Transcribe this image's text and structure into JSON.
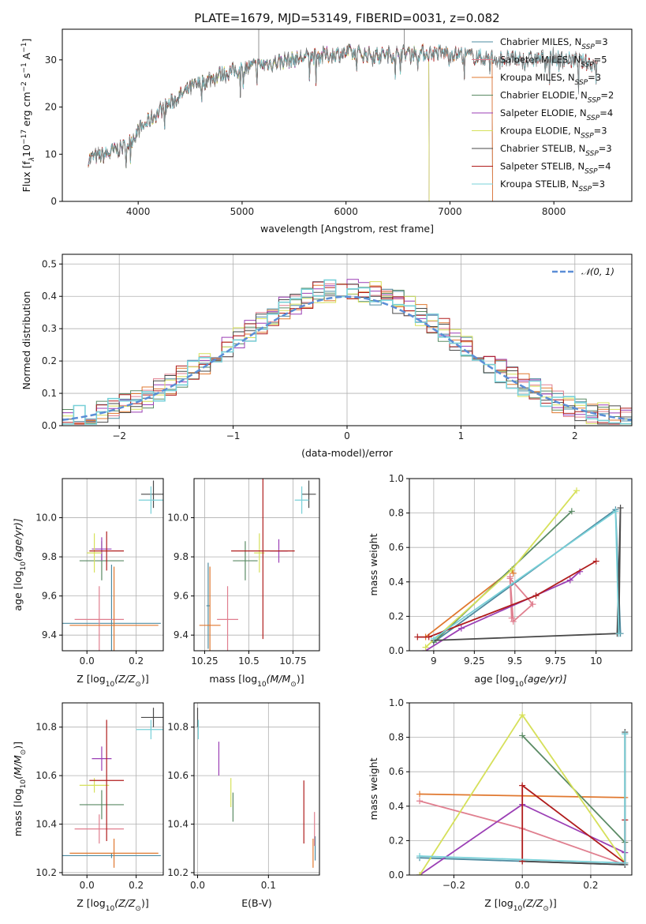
{
  "figure_title": "PLATE=1679, MJD=53149, FIBERID=0031, z=0.082",
  "colors": {
    "Chabrier MILES": "#4e8ba0",
    "Salpeter MILES": "#e07f8f",
    "Kroupa MILES": "#e0782f",
    "Chabrier ELODIE": "#5a8a64",
    "Salpeter ELODIE": "#9b3fb5",
    "Kroupa ELODIE": "#d6e05a",
    "Chabrier STELIB": "#4a4a4a",
    "Salpeter STELIB": "#b01d1d",
    "Kroupa STELIB": "#78d0d8",
    "Gaussian": "#5b8ed6"
  },
  "legend_spectrum": [
    {
      "model": "Chabrier MILES",
      "label_pre": "Chabrier MILES, N",
      "sub": "SSP",
      "label_post": "=3"
    },
    {
      "model": "Salpeter MILES",
      "label_pre": "Salpeter MILES, N",
      "sub": "SSP",
      "label_post": "=5"
    },
    {
      "model": "Kroupa MILES",
      "label_pre": "Kroupa MILES, N",
      "sub": "SSP",
      "label_post": "=3"
    },
    {
      "model": "Chabrier ELODIE",
      "label_pre": "Chabrier ELODIE, N",
      "sub": "SSP",
      "label_post": "=2"
    },
    {
      "model": "Salpeter ELODIE",
      "label_pre": "Salpeter ELODIE, N",
      "sub": "SSP",
      "label_post": "=4"
    },
    {
      "model": "Kroupa ELODIE",
      "label_pre": "Kroupa ELODIE, N",
      "sub": "SSP",
      "label_post": "=3"
    },
    {
      "model": "Chabrier STELIB",
      "label_pre": "Chabrier STELIB, N",
      "sub": "SSP",
      "label_post": "=3"
    },
    {
      "model": "Salpeter STELIB",
      "label_pre": "Salpeter STELIB, N",
      "sub": "SSP",
      "label_post": "=4"
    },
    {
      "model": "Kroupa STELIB",
      "label_pre": "Kroupa STELIB, N",
      "sub": "SSP",
      "label_post": "=3"
    }
  ],
  "chart_data": [
    {
      "id": "spectrum",
      "type": "line",
      "title": "PLATE=1679, MJD=53149, FIBERID=0031, z=0.082",
      "xlabel": "wavelength [Angstrom, rest frame]",
      "ylabel_pre": "Flux [f",
      "ylabel_sub": "λ",
      "ylabel_mid": "10",
      "ylabel_sup1": "−17",
      "ylabel_post": " erg cm",
      "ylabel_sup2": "−2",
      "ylabel_s": " s",
      "ylabel_sup3": "−1",
      "ylabel_a": " A",
      "ylabel_sup4": "−1",
      "ylabel_end": "]",
      "xlim": [
        3270,
        8750
      ],
      "ylim": [
        0,
        36.5
      ],
      "xticks": [
        4000,
        5000,
        6000,
        7000,
        8000
      ],
      "yticks": [
        0,
        10,
        20,
        30
      ],
      "continuum_x": [
        3520,
        3700,
        3900,
        4000,
        4200,
        4500,
        4800,
        5000,
        5300,
        5600,
        6000,
        6300,
        6600,
        7000,
        7300,
        7700,
        8000,
        8300,
        8420
      ],
      "continuum_y": [
        9,
        10,
        12,
        15,
        19,
        24,
        27,
        28,
        29.5,
        30.5,
        31.5,
        31,
        31.5,
        31.5,
        30.5,
        30,
        30.5,
        29.5,
        29
      ]
    },
    {
      "id": "residuals",
      "type": "histogram",
      "xlabel": "(data-model)/error",
      "ylabel": "Normed distribution",
      "xlim": [
        -2.5,
        2.5
      ],
      "ylim": [
        0,
        0.53
      ],
      "xticks": [
        -2,
        -1,
        0,
        1,
        2
      ],
      "yticks": [
        0.0,
        0.1,
        0.2,
        0.3,
        0.4,
        0.5
      ],
      "legend_label": "𝒩(0, 1)",
      "gaussian": {
        "mu": 0,
        "sigma": 1
      }
    },
    {
      "id": "age_vs_Z",
      "type": "scatter",
      "xlabel_pre": "Z [log",
      "xlabel_sub": "10",
      "xlabel_post": "(Z/Z",
      "xlabel_sub2": "⊙",
      "xlabel_end": ")]",
      "ylabel_pre": "age  [log",
      "ylabel_sub": "10",
      "ylabel_post": "(age/yr)]",
      "xlim": [
        -0.1,
        0.31
      ],
      "ylim": [
        9.32,
        10.2
      ],
      "xticks": [
        0.0,
        0.2
      ],
      "yticks": [
        9.4,
        9.6,
        9.8,
        10.0
      ],
      "points": [
        {
          "model": "Chabrier MILES",
          "x": 0.1,
          "y": 9.46,
          "xerr": 0.2,
          "yerr": 0.3
        },
        {
          "model": "Salpeter MILES",
          "x": 0.05,
          "y": 9.48,
          "xerr": 0.1,
          "yerr": 0.17
        },
        {
          "model": "Kroupa MILES",
          "x": 0.11,
          "y": 9.45,
          "xerr": 0.18,
          "yerr": 0.3
        },
        {
          "model": "Chabrier ELODIE",
          "x": 0.06,
          "y": 9.78,
          "xerr": 0.09,
          "yerr": 0.1
        },
        {
          "model": "Salpeter ELODIE",
          "x": 0.06,
          "y": 9.84,
          "xerr": 0.04,
          "yerr": 0.06
        },
        {
          "model": "Kroupa ELODIE",
          "x": 0.03,
          "y": 9.82,
          "xerr": 0.03,
          "yerr": 0.1
        },
        {
          "model": "Chabrier STELIB",
          "x": 0.27,
          "y": 10.12,
          "xerr": 0.05,
          "yerr": 0.07
        },
        {
          "model": "Salpeter STELIB",
          "x": 0.08,
          "y": 9.83,
          "xerr": 0.07,
          "yerr": 0.1
        },
        {
          "model": "Kroupa STELIB",
          "x": 0.26,
          "y": 10.09,
          "xerr": 0.05,
          "yerr": 0.07
        }
      ]
    },
    {
      "id": "age_vs_mass",
      "type": "scatter",
      "xlabel_pre": "mass [log",
      "xlabel_sub": "10",
      "xlabel_post": "(M/M",
      "xlabel_sub2": "⊙",
      "xlabel_end": ")]",
      "xlim": [
        10.19,
        10.9
      ],
      "ylim": [
        9.32,
        10.2
      ],
      "xticks": [
        10.25,
        10.5,
        10.75
      ],
      "yticks": [
        9.4,
        9.6,
        9.8,
        10.0
      ],
      "points": [
        {
          "model": "Chabrier MILES",
          "x": 10.27,
          "y": 9.55,
          "xerr": 0.01,
          "yerr": 0.22
        },
        {
          "model": "Salpeter MILES",
          "x": 10.38,
          "y": 9.48,
          "xerr": 0.06,
          "yerr": 0.17
        },
        {
          "model": "Kroupa MILES",
          "x": 10.28,
          "y": 9.45,
          "xerr": 0.06,
          "yerr": 0.3
        },
        {
          "model": "Chabrier ELODIE",
          "x": 10.48,
          "y": 9.78,
          "xerr": 0.07,
          "yerr": 0.1
        },
        {
          "model": "Salpeter ELODIE",
          "x": 10.67,
          "y": 9.83,
          "xerr": 0.05,
          "yerr": 0.06
        },
        {
          "model": "Kroupa ELODIE",
          "x": 10.56,
          "y": 9.82,
          "xerr": 0.03,
          "yerr": 0.1
        },
        {
          "model": "Chabrier STELIB",
          "x": 10.84,
          "y": 10.12,
          "xerr": 0.04,
          "yerr": 0.07
        },
        {
          "model": "Salpeter STELIB",
          "x": 10.58,
          "y": 9.83,
          "xerr": 0.18,
          "yerr": 0.45
        },
        {
          "model": "Kroupa STELIB",
          "x": 10.8,
          "y": 10.09,
          "xerr": 0.04,
          "yerr": 0.07
        }
      ]
    },
    {
      "id": "weight_vs_age",
      "type": "line",
      "xlabel_pre": "age  [log",
      "xlabel_sub": "10",
      "xlabel_post": "(age/yr)]",
      "ylabel": "mass weight",
      "xlim": [
        8.85,
        10.22
      ],
      "ylim": [
        0,
        1.0
      ],
      "xticks": [
        9.0,
        9.25,
        9.5,
        9.75,
        10.0
      ],
      "yticks": [
        0.0,
        0.2,
        0.4,
        0.6,
        0.8,
        1.0
      ],
      "series": [
        {
          "model": "Chabrier MILES",
          "x": [
            9.0,
            10.12,
            10.15
          ],
          "y": [
            0.05,
            0.82,
            0.1
          ]
        },
        {
          "model": "Salpeter MILES",
          "x": [
            9.47,
            9.49,
            9.61,
            9.47,
            9.48
          ],
          "y": [
            0.43,
            0.17,
            0.27,
            0.42,
            0.19
          ]
        },
        {
          "model": "Kroupa MILES",
          "x": [
            8.95,
            9.48,
            9.49
          ],
          "y": [
            0.08,
            0.47,
            0.45
          ]
        },
        {
          "model": "Chabrier ELODIE",
          "x": [
            9.0,
            9.85
          ],
          "y": [
            0.05,
            0.81
          ]
        },
        {
          "model": "Salpeter ELODIE",
          "x": [
            8.95,
            9.17,
            9.84,
            9.9
          ],
          "y": [
            0.0,
            0.13,
            0.41,
            0.46
          ]
        },
        {
          "model": "Kroupa ELODIE",
          "x": [
            8.95,
            9.48,
            9.88
          ],
          "y": [
            0.02,
            0.47,
            0.93
          ]
        },
        {
          "model": "Chabrier STELIB",
          "x": [
            9.0,
            10.13,
            10.15,
            10.14
          ],
          "y": [
            0.06,
            0.1,
            0.83,
            0.1
          ]
        },
        {
          "model": "Salpeter STELIB",
          "x": [
            8.9,
            8.97,
            9.63,
            10.0
          ],
          "y": [
            0.08,
            0.08,
            0.32,
            0.52
          ]
        },
        {
          "model": "Kroupa STELIB",
          "x": [
            9.0,
            10.12,
            10.14
          ],
          "y": [
            0.07,
            0.81,
            0.1
          ]
        }
      ]
    },
    {
      "id": "mass_vs_Z",
      "type": "scatter",
      "xlabel_pre": "Z [log",
      "xlabel_sub": "10",
      "xlabel_post": "(Z/Z",
      "xlabel_sub2": "⊙",
      "xlabel_end": ")]",
      "ylabel_pre": "mass [log",
      "ylabel_sub": "10",
      "ylabel_post": "(M/M",
      "ylabel_sub2": "⊙",
      "ylabel_end": ")]",
      "xlim": [
        -0.1,
        0.31
      ],
      "ylim": [
        10.19,
        10.9
      ],
      "xticks": [
        0.0,
        0.2
      ],
      "yticks": [
        10.2,
        10.4,
        10.6,
        10.8
      ],
      "points": [
        {
          "model": "Chabrier MILES",
          "x": 0.1,
          "y": 10.27,
          "xerr": 0.2,
          "yerr": 0.01
        },
        {
          "model": "Salpeter MILES",
          "x": 0.05,
          "y": 10.38,
          "xerr": 0.1,
          "yerr": 0.06
        },
        {
          "model": "Kroupa MILES",
          "x": 0.11,
          "y": 10.28,
          "xerr": 0.18,
          "yerr": 0.06
        },
        {
          "model": "Chabrier ELODIE",
          "x": 0.06,
          "y": 10.48,
          "xerr": 0.09,
          "yerr": 0.06
        },
        {
          "model": "Salpeter ELODIE",
          "x": 0.06,
          "y": 10.67,
          "xerr": 0.04,
          "yerr": 0.05
        },
        {
          "model": "Kroupa ELODIE",
          "x": 0.03,
          "y": 10.56,
          "xerr": 0.06,
          "yerr": 0.03
        },
        {
          "model": "Chabrier STELIB",
          "x": 0.27,
          "y": 10.84,
          "xerr": 0.05,
          "yerr": 0.04
        },
        {
          "model": "Salpeter STELIB",
          "x": 0.08,
          "y": 10.58,
          "xerr": 0.07,
          "yerr": 0.25
        },
        {
          "model": "Kroupa STELIB",
          "x": 0.26,
          "y": 10.79,
          "xerr": 0.06,
          "yerr": 0.04
        }
      ]
    },
    {
      "id": "mass_vs_ebv",
      "type": "scatter",
      "xlabel": "E(B-V)",
      "xlim": [
        -0.005,
        0.172
      ],
      "ylim": [
        10.19,
        10.9
      ],
      "xticks": [
        0.0,
        0.1
      ],
      "yticks": [
        10.2,
        10.4,
        10.6,
        10.8
      ],
      "points": [
        {
          "model": "Chabrier MILES",
          "x": 0.166,
          "y": 10.3,
          "xerr": 0.0,
          "yerr": 0.05
        },
        {
          "model": "Salpeter MILES",
          "x": 0.165,
          "y": 10.38,
          "xerr": 0.0,
          "yerr": 0.07
        },
        {
          "model": "Kroupa MILES",
          "x": 0.163,
          "y": 10.28,
          "xerr": 0.0,
          "yerr": 0.06
        },
        {
          "model": "Chabrier ELODIE",
          "x": 0.05,
          "y": 10.47,
          "xerr": 0.0,
          "yerr": 0.06
        },
        {
          "model": "Salpeter ELODIE",
          "x": 0.03,
          "y": 10.67,
          "xerr": 0.0,
          "yerr": 0.07
        },
        {
          "model": "Kroupa ELODIE",
          "x": 0.047,
          "y": 10.53,
          "xerr": 0.0,
          "yerr": 0.06
        },
        {
          "model": "Chabrier STELIB",
          "x": 0.0,
          "y": 10.84,
          "xerr": 0.0,
          "yerr": 0.04
        },
        {
          "model": "Salpeter STELIB",
          "x": 0.15,
          "y": 10.45,
          "xerr": 0.0,
          "yerr": 0.13
        },
        {
          "model": "Kroupa STELIB",
          "x": 0.001,
          "y": 10.79,
          "xerr": 0.0,
          "yerr": 0.04
        }
      ]
    },
    {
      "id": "weight_vs_Z",
      "type": "line",
      "xlabel_pre": "Z [log",
      "xlabel_sub": "10",
      "xlabel_post": "(Z/Z",
      "xlabel_sub2": "⊙",
      "xlabel_end": ")]",
      "ylabel": "mass weight",
      "xlim": [
        -0.33,
        0.32
      ],
      "ylim": [
        0,
        1.0
      ],
      "xticks": [
        -0.2,
        0.0,
        0.2
      ],
      "yticks": [
        0.0,
        0.2,
        0.4,
        0.6,
        0.8,
        1.0
      ],
      "series": [
        {
          "model": "Chabrier MILES",
          "x": [
            -0.3,
            0.3,
            0.3
          ],
          "y": [
            0.1,
            0.06,
            0.82
          ]
        },
        {
          "model": "Salpeter MILES",
          "x": [
            -0.3,
            0.0,
            0.3,
            0.3
          ],
          "y": [
            0.43,
            0.27,
            0.06,
            0.19
          ]
        },
        {
          "model": "Kroupa MILES",
          "x": [
            -0.3,
            0.3
          ],
          "y": [
            0.47,
            0.45
          ]
        },
        {
          "model": "Chabrier ELODIE",
          "x": [
            0.0,
            0.3
          ],
          "y": [
            0.81,
            0.19
          ]
        },
        {
          "model": "Salpeter ELODIE",
          "x": [
            -0.3,
            0.0,
            0.3
          ],
          "y": [
            0.0,
            0.41,
            0.13
          ]
        },
        {
          "model": "Kroupa ELODIE",
          "x": [
            -0.3,
            0.0,
            0.3
          ],
          "y": [
            0.0,
            0.93,
            0.07
          ]
        },
        {
          "model": "Chabrier STELIB",
          "x": [
            0.0,
            0.3,
            0.3
          ],
          "y": [
            0.08,
            0.06,
            0.83
          ]
        },
        {
          "model": "Salpeter STELIB",
          "x": [
            0.0,
            0.0,
            0.3,
            0.3
          ],
          "y": [
            0.08,
            0.52,
            0.07,
            0.32
          ]
        },
        {
          "model": "Kroupa STELIB",
          "x": [
            -0.3,
            0.3,
            0.3
          ],
          "y": [
            0.11,
            0.07,
            0.82
          ]
        }
      ]
    }
  ]
}
